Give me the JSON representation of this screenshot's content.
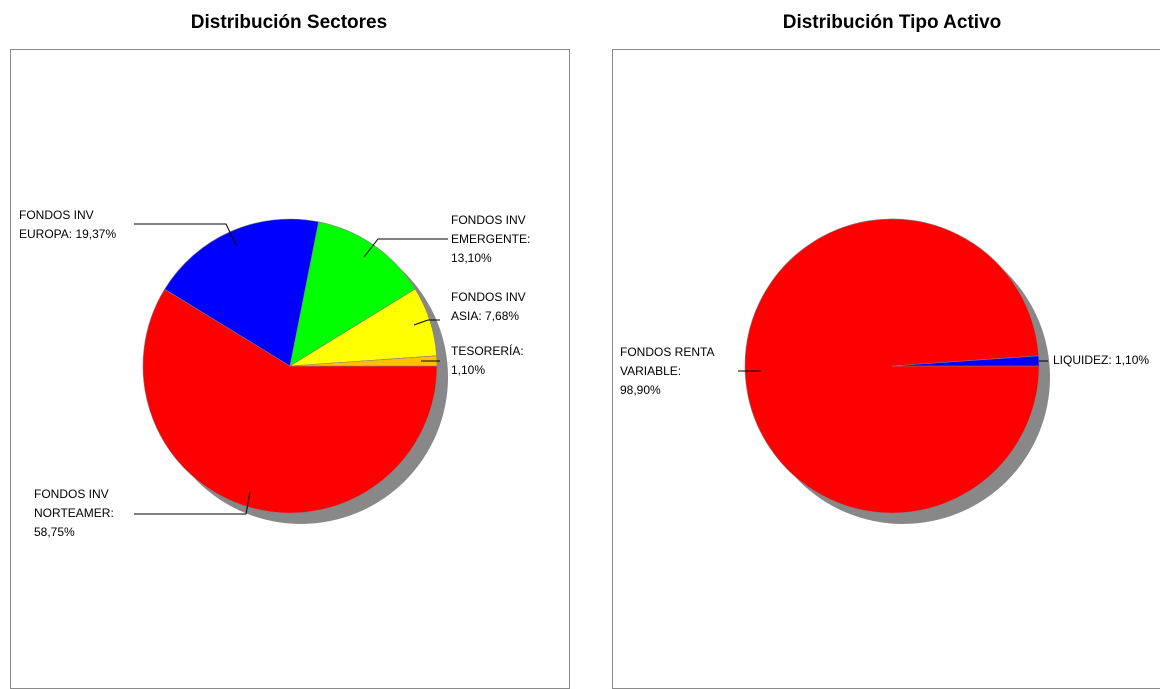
{
  "colors": {
    "red": "#ff0000",
    "blue": "#0000ff",
    "green": "#00ff00",
    "yellow": "#ffff00",
    "orange": "#ffc000",
    "shadow": "#888888",
    "border": "#8a8a8a"
  },
  "chart_data": [
    {
      "type": "pie",
      "title": "Distribución Sectores",
      "slices": [
        {
          "value": 58.75,
          "color": "#ff0000",
          "label_lines": [
            "FONDOS INV",
            "NORTEAMER:",
            "58,75%"
          ]
        },
        {
          "value": 19.37,
          "color": "#0000ff",
          "label_lines": [
            "FONDOS INV",
            "EUROPA: 19,37%"
          ]
        },
        {
          "value": 13.1,
          "color": "#00ff00",
          "label_lines": [
            "FONDOS INV",
            "EMERGENTE:",
            "13,10%"
          ]
        },
        {
          "value": 7.68,
          "color": "#ffff00",
          "label_lines": [
            "FONDOS INV",
            "ASIA: 7,68%"
          ]
        },
        {
          "value": 1.1,
          "color": "#ffc000",
          "label_lines": [
            "TESORERÍA:",
            "1,10%"
          ]
        }
      ]
    },
    {
      "type": "pie",
      "title": "Distribución Tipo Activo",
      "slices": [
        {
          "value": 98.9,
          "color": "#ff0000",
          "label_lines": [
            "FONDOS RENTA",
            "VARIABLE:",
            "98,90%"
          ]
        },
        {
          "value": 1.1,
          "color": "#0000ff",
          "label_lines": [
            "LIQUIDEZ: 1,10%"
          ]
        }
      ]
    }
  ]
}
